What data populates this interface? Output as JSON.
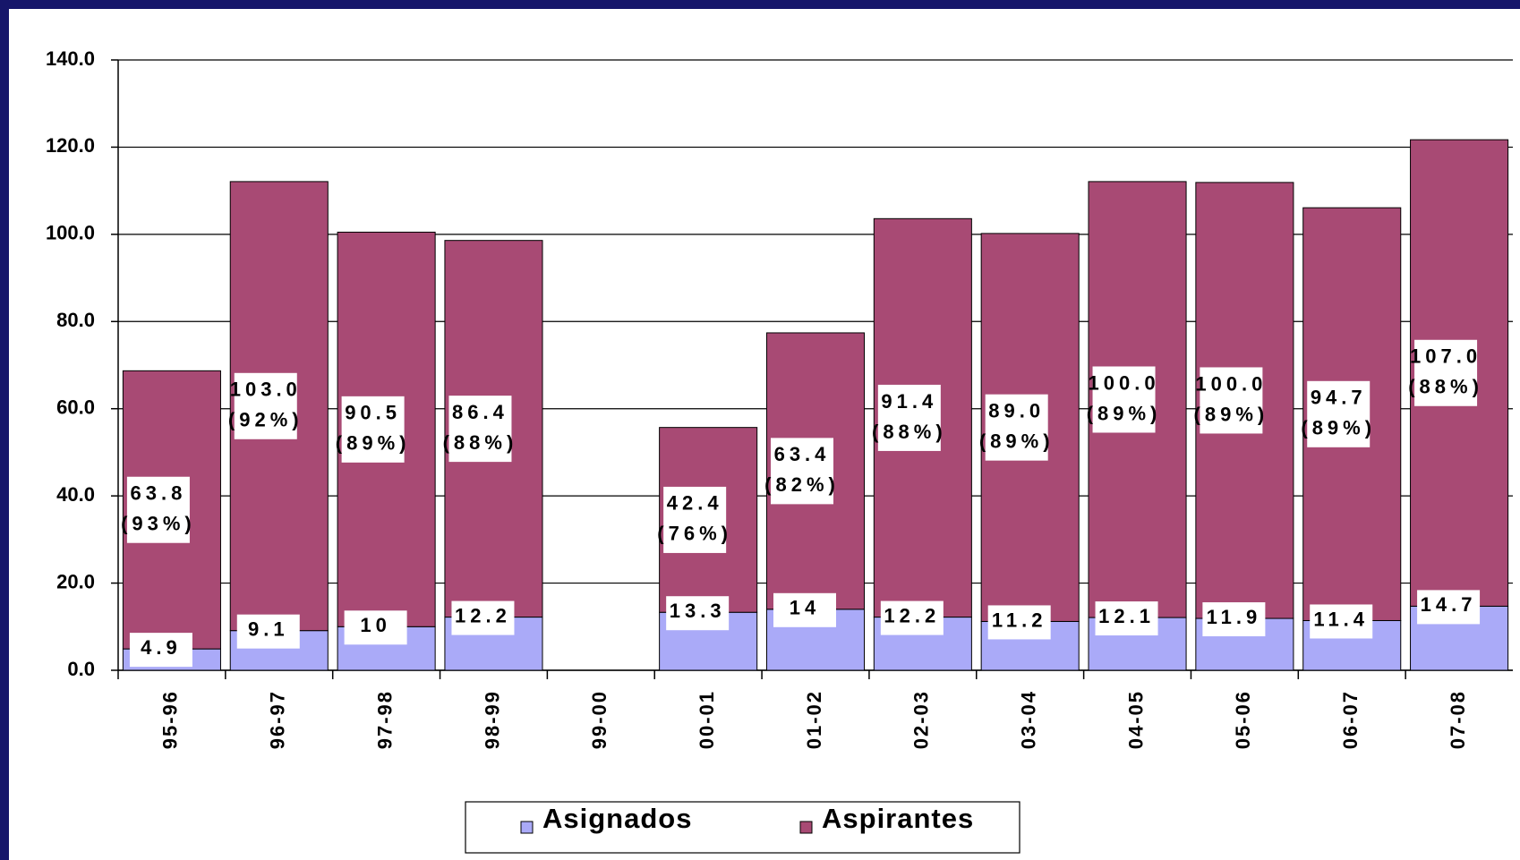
{
  "chart_data": {
    "type": "stacked_bar",
    "categories": [
      "95-96",
      "96-97",
      "97-98",
      "98-99",
      "99-00",
      "00-01",
      "01-02",
      "02-03",
      "03-04",
      "04-05",
      "05-06",
      "06-07",
      "07-08"
    ],
    "series": [
      {
        "name": "Asignados",
        "color": "#aaaaf8",
        "values": [
          4.9,
          9.1,
          10.0,
          12.2,
          null,
          13.3,
          14.0,
          12.2,
          11.2,
          12.1,
          11.9,
          11.4,
          14.7
        ]
      },
      {
        "name": "Aspirantes",
        "color": "#a84a74",
        "values": [
          63.8,
          103.0,
          90.5,
          86.4,
          null,
          42.4,
          63.4,
          91.4,
          89.0,
          100.0,
          100.0,
          94.7,
          107.0
        ],
        "value_labels": [
          "63.8\n(93%)",
          "103.0\n(92%)",
          "90.5\n(89%)",
          "86.4\n(88%)",
          null,
          "42.4\n(76%)",
          "63.4\n(82%)",
          "91.4\n(88%)",
          "89.0\n(89%)",
          "100.0\n(89%)",
          "100.0\n(89%)",
          "94.7\n(89%)",
          "107.0\n(88%)"
        ]
      }
    ],
    "ylim": [
      0,
      140
    ],
    "yticks": [
      {
        "value": 0,
        "label": "0.0"
      },
      {
        "value": 20,
        "label": "20.0"
      },
      {
        "value": 40,
        "label": "40.0"
      },
      {
        "value": 60,
        "label": "60.0"
      },
      {
        "value": 80,
        "label": "80.0"
      },
      {
        "value": 100,
        "label": "100.0"
      },
      {
        "value": 120,
        "label": "120.0"
      },
      {
        "value": 140,
        "label": "140.0"
      }
    ],
    "grid": true,
    "legend": "bottom"
  }
}
